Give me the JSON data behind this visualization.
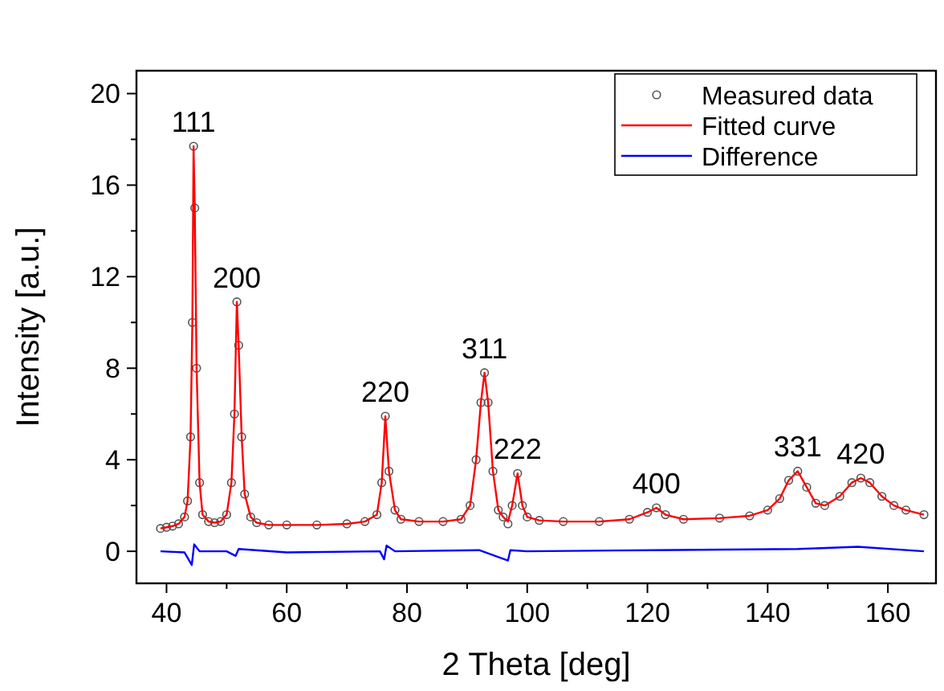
{
  "chart_data": {
    "type": "line",
    "xlabel": "2 Theta [deg]",
    "ylabel": "Intensity [a.u.]",
    "xlim": [
      35,
      168
    ],
    "ylim": [
      -1.4,
      21
    ],
    "xticks": [
      40,
      60,
      80,
      100,
      120,
      140,
      160
    ],
    "yticks": [
      0,
      4,
      8,
      12,
      16,
      20
    ],
    "grid": false,
    "legend": "top right",
    "x": [
      39,
      40,
      41,
      42,
      43,
      43.5,
      44,
      44.3,
      44.5,
      44.7,
      45,
      45.5,
      46,
      47,
      48,
      49,
      50,
      50.8,
      51.3,
      51.7,
      52,
      52.5,
      53,
      54,
      55,
      57,
      60,
      65,
      70,
      73,
      75,
      75.8,
      76.4,
      77,
      78,
      79,
      82,
      86,
      89,
      90.5,
      91.5,
      92.3,
      92.9,
      93.5,
      94.3,
      95.2,
      96,
      96.8,
      97.5,
      98.4,
      99.2,
      100,
      102,
      106,
      112,
      117,
      120,
      121.5,
      123,
      126,
      132,
      137,
      140,
      142,
      143.5,
      145,
      146.5,
      148,
      149.5,
      152,
      154,
      155.5,
      157,
      159,
      161,
      163,
      166
    ],
    "series": [
      {
        "name": "Measured data",
        "type": "scatter",
        "marker": "circle",
        "color": "#555555",
        "values": [
          1.0,
          1.05,
          1.1,
          1.2,
          1.5,
          2.2,
          5,
          10,
          17.7,
          15,
          8,
          3,
          1.6,
          1.3,
          1.25,
          1.3,
          1.6,
          3,
          6,
          10.9,
          9,
          5,
          2.5,
          1.5,
          1.25,
          1.15,
          1.15,
          1.15,
          1.2,
          1.3,
          1.6,
          3,
          5.9,
          3.5,
          1.8,
          1.4,
          1.3,
          1.3,
          1.4,
          2,
          4,
          6.5,
          7.8,
          6.5,
          3.5,
          1.8,
          1.5,
          1.2,
          2,
          3.4,
          2,
          1.5,
          1.35,
          1.3,
          1.3,
          1.4,
          1.7,
          1.9,
          1.6,
          1.4,
          1.45,
          1.55,
          1.8,
          2.3,
          3.1,
          3.5,
          2.8,
          2.1,
          2.0,
          2.4,
          3.0,
          3.2,
          3.0,
          2.4,
          2.0,
          1.8,
          1.6
        ]
      },
      {
        "name": "Fitted curve",
        "line_style": "solid",
        "color": "#ff0000",
        "values": [
          1.0,
          1.05,
          1.1,
          1.2,
          1.5,
          2.2,
          5,
          10,
          17.7,
          15,
          8,
          3,
          1.6,
          1.3,
          1.25,
          1.3,
          1.6,
          3,
          6,
          10.9,
          9,
          5,
          2.5,
          1.5,
          1.25,
          1.15,
          1.15,
          1.15,
          1.2,
          1.3,
          1.6,
          3,
          5.9,
          3.5,
          1.8,
          1.4,
          1.3,
          1.3,
          1.4,
          2,
          4,
          6.5,
          7.8,
          6.5,
          3.5,
          1.8,
          1.5,
          1.3,
          2,
          3.4,
          2,
          1.5,
          1.35,
          1.3,
          1.3,
          1.4,
          1.7,
          1.9,
          1.6,
          1.4,
          1.45,
          1.55,
          1.8,
          2.3,
          3.1,
          3.5,
          2.8,
          2.1,
          2.0,
          2.4,
          3.0,
          3.2,
          3.0,
          2.4,
          2.0,
          1.8,
          1.6
        ]
      },
      {
        "name": "Difference",
        "line_style": "solid",
        "color": "#0000ff",
        "x": [
          39,
          43,
          44.2,
          44.6,
          45.5,
          50,
          51.5,
          52,
          60,
          75.5,
          76.2,
          76.6,
          78,
          92,
          96.8,
          97.2,
          100,
          121,
          145,
          155,
          166
        ],
        "values": [
          0,
          -0.05,
          -0.6,
          0.3,
          0,
          0,
          -0.2,
          0.1,
          -0.05,
          0,
          -0.35,
          0.25,
          0,
          0.05,
          -0.4,
          0.05,
          0,
          0.05,
          0.1,
          0.2,
          0
        ]
      }
    ],
    "annotations": [
      {
        "text": "111",
        "x": 44.5,
        "y": 17.7
      },
      {
        "text": "200",
        "x": 51.7,
        "y": 10.9
      },
      {
        "text": "220",
        "x": 76.4,
        "y": 5.9
      },
      {
        "text": "311",
        "x": 92.9,
        "y": 7.8
      },
      {
        "text": "222",
        "x": 98.4,
        "y": 3.4
      },
      {
        "text": "400",
        "x": 121.5,
        "y": 1.9
      },
      {
        "text": "331",
        "x": 145,
        "y": 3.5
      },
      {
        "text": "420",
        "x": 155.5,
        "y": 3.2
      }
    ]
  }
}
